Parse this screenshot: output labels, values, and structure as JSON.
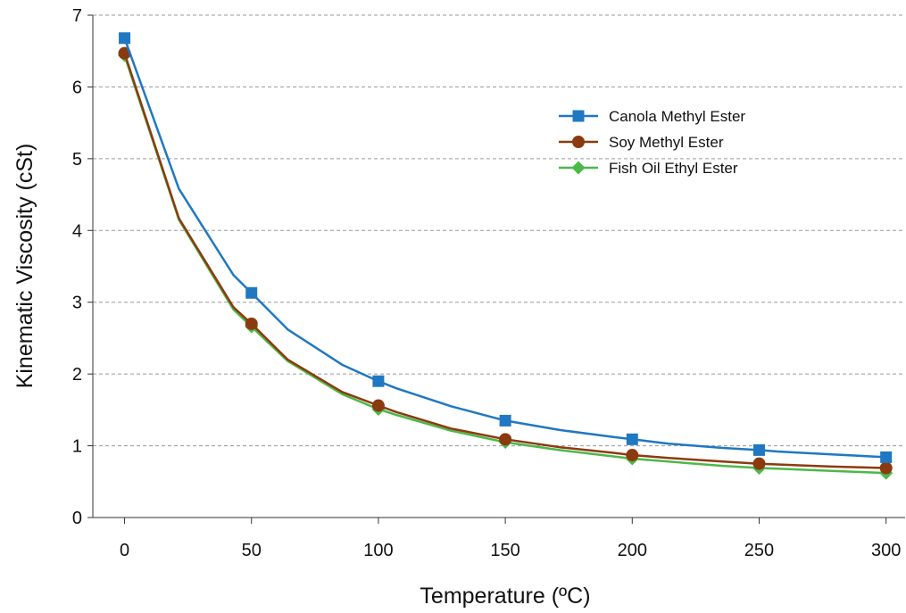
{
  "chart_data": {
    "type": "line",
    "xlabel": "Temperature (ºC)",
    "ylabel": "Kinematic Viscosity (cSt)",
    "xlim": [
      -12.5,
      307.5
    ],
    "ylim": [
      0,
      7
    ],
    "xticks": [
      "0",
      "50",
      "100",
      "150",
      "200",
      "250",
      "300"
    ],
    "xtick_values": [
      0,
      50,
      100,
      150,
      200,
      250,
      300
    ],
    "yticks": [
      "0",
      "1",
      "2",
      "3",
      "4",
      "5",
      "6",
      "7"
    ],
    "ytick_values": [
      0,
      1,
      2,
      3,
      4,
      5,
      6,
      7
    ],
    "grid": "horizontal dashed",
    "legend_position": "top-right",
    "series": [
      {
        "name": "Canola Methyl Ester",
        "color": "#1f78c1",
        "marker": "square",
        "x": [
          0,
          21.4,
          42.9,
          50,
          64.3,
          85.7,
          100,
          107.1,
          128.6,
          150,
          171.4,
          192.9,
          200,
          214.3,
          235.7,
          250,
          257.1,
          278.6,
          300
        ],
        "y": [
          6.68,
          4.58,
          3.38,
          3.13,
          2.62,
          2.13,
          1.9,
          1.8,
          1.55,
          1.35,
          1.22,
          1.12,
          1.09,
          1.03,
          0.97,
          0.94,
          0.92,
          0.88,
          0.84
        ],
        "marker_x": [
          0,
          50,
          100,
          150,
          200,
          250,
          300
        ],
        "marker_y": [
          6.68,
          3.13,
          1.9,
          1.35,
          1.09,
          0.94,
          0.84
        ]
      },
      {
        "name": "Soy Methyl Ester",
        "color": "#8b3a0f",
        "marker": "circle",
        "x": [
          0,
          21.4,
          42.9,
          50,
          64.3,
          85.7,
          100,
          107.1,
          128.6,
          150,
          171.4,
          192.9,
          200,
          214.3,
          235.7,
          250,
          257.1,
          278.6,
          300
        ],
        "y": [
          6.47,
          4.17,
          2.93,
          2.7,
          2.2,
          1.75,
          1.56,
          1.47,
          1.24,
          1.09,
          0.98,
          0.9,
          0.87,
          0.83,
          0.78,
          0.75,
          0.74,
          0.71,
          0.69
        ],
        "marker_x": [
          0,
          50,
          100,
          150,
          200,
          250,
          300
        ],
        "marker_y": [
          6.47,
          2.7,
          1.56,
          1.09,
          0.87,
          0.75,
          0.69
        ]
      },
      {
        "name": "Fish Oil Ethyl Ester",
        "color": "#4cb848",
        "marker": "diamond",
        "x": [
          0,
          21.4,
          42.9,
          50,
          64.3,
          85.7,
          100,
          107.1,
          128.6,
          150,
          171.4,
          192.9,
          200,
          214.3,
          235.7,
          250,
          257.1,
          278.6,
          300
        ],
        "y": [
          6.44,
          4.15,
          2.9,
          2.66,
          2.18,
          1.72,
          1.51,
          1.43,
          1.21,
          1.05,
          0.94,
          0.85,
          0.82,
          0.78,
          0.72,
          0.69,
          0.68,
          0.65,
          0.62
        ],
        "marker_x": [
          0,
          50,
          100,
          150,
          200,
          250,
          300
        ],
        "marker_y": [
          6.44,
          2.66,
          1.51,
          1.05,
          0.82,
          0.69,
          0.62
        ]
      }
    ]
  }
}
